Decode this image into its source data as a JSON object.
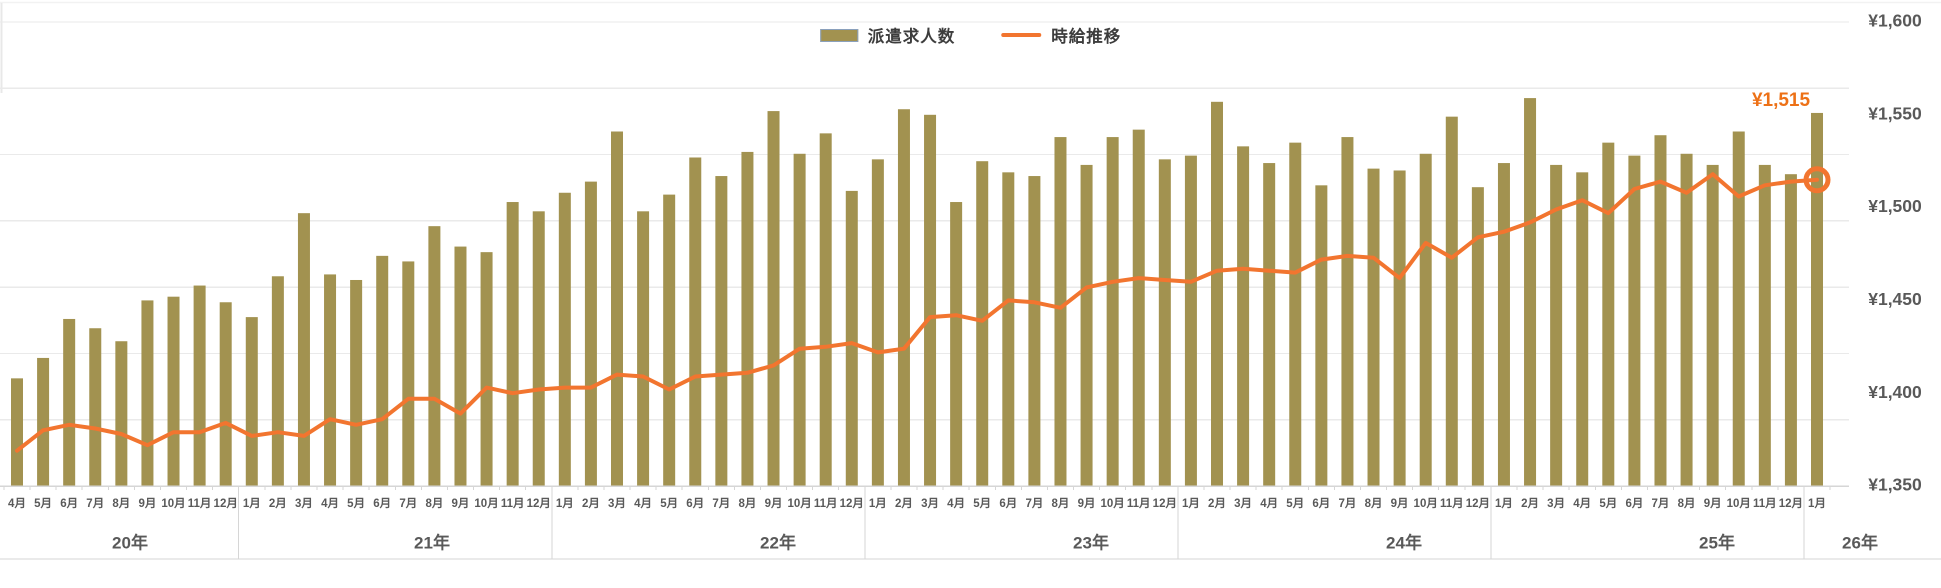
{
  "legend": {
    "bar_label": "派遣求人数",
    "line_label": "時給推移"
  },
  "annotation": {
    "last_value_label": "¥1,515"
  },
  "y_axis": {
    "labels": [
      "¥1,600",
      "¥1,550",
      "¥1,500",
      "¥1,450",
      "¥1,400",
      "¥1,350"
    ],
    "values": [
      1600,
      1550,
      1500,
      1450,
      1400,
      1350
    ]
  },
  "x_axis": {
    "years": [
      {
        "label": "20年",
        "months": [
          "4月",
          "5月",
          "6月",
          "7月",
          "8月",
          "9月",
          "10月",
          "11月",
          "12月"
        ]
      },
      {
        "label": "21年",
        "months": [
          "1月",
          "2月",
          "3月",
          "4月",
          "5月",
          "6月",
          "7月",
          "8月",
          "9月",
          "10月",
          "11月",
          "12月"
        ]
      },
      {
        "label": "22年",
        "months": [
          "1月",
          "2月",
          "3月",
          "4月",
          "5月",
          "6月",
          "7月",
          "8月",
          "9月",
          "10月",
          "11月",
          "12月"
        ]
      },
      {
        "label": "23年",
        "months": [
          "1月",
          "2月",
          "3月",
          "4月",
          "5月",
          "6月",
          "7月",
          "8月",
          "9月",
          "10月",
          "11月",
          "12月"
        ]
      },
      {
        "label": "24年",
        "months": [
          "1月",
          "2月",
          "3月",
          "4月",
          "5月",
          "6月",
          "7月",
          "8月",
          "9月",
          "10月",
          "11月",
          "12月"
        ]
      },
      {
        "label": "25年",
        "months": [
          "1月",
          "2月",
          "3月",
          "4月",
          "5月",
          "6月",
          "7月",
          "8月",
          "9月",
          "10月",
          "11月",
          "12月"
        ]
      },
      {
        "label": "26年",
        "months": [
          "1月"
        ]
      }
    ]
  },
  "colors": {
    "bar": "#a29250",
    "line": "#f2752f",
    "annotation": "#ed7117",
    "axis_text": "#595959",
    "gridline": "#eaeaea",
    "separator": "#d6d6d6",
    "baseline": "#d6d6d6"
  },
  "chart_data": {
    "type": "bar+line combo",
    "title": "",
    "categories": [
      "20年4月",
      "20年5月",
      "20年6月",
      "20年7月",
      "20年8月",
      "20年9月",
      "20年10月",
      "20年11月",
      "20年12月",
      "21年1月",
      "21年2月",
      "21年3月",
      "21年4月",
      "21年5月",
      "21年6月",
      "21年7月",
      "21年8月",
      "21年9月",
      "21年10月",
      "21年11月",
      "21年12月",
      "22年1月",
      "22年2月",
      "22年3月",
      "22年4月",
      "22年5月",
      "22年6月",
      "22年7月",
      "22年8月",
      "22年9月",
      "22年10月",
      "22年11月",
      "22年12月",
      "23年1月",
      "23年2月",
      "23年3月",
      "23年4月",
      "23年5月",
      "23年6月",
      "23年7月",
      "23年8月",
      "23年9月",
      "23年10月",
      "23年11月",
      "23年12月",
      "24年1月",
      "24年2月",
      "24年3月",
      "24年4月",
      "24年5月",
      "24年6月",
      "24年7月",
      "24年8月",
      "24年9月",
      "24年10月",
      "24年11月",
      "24年12月",
      "25年1月",
      "25年2月",
      "25年3月",
      "25年4月",
      "25年5月",
      "25年6月",
      "25年7月",
      "25年8月",
      "25年9月",
      "25年10月",
      "25年11月",
      "25年12月",
      "26年1月"
    ],
    "series": [
      {
        "name": "派遣求人数",
        "type": "bar",
        "axis": "hidden-left (job-count axis not labeled in image); values below are the bar-top positions expressed on the visible right ¥ axis",
        "values": [
          1408,
          1419,
          1440,
          1435,
          1428,
          1450,
          1452,
          1458,
          1449,
          1441,
          1463,
          1497,
          1464,
          1461,
          1474,
          1471,
          1490,
          1479,
          1476,
          1503,
          1498,
          1508,
          1514,
          1541,
          1498,
          1507,
          1527,
          1517,
          1530,
          1552,
          1529,
          1540,
          1509,
          1526,
          1553,
          1550,
          1503,
          1525,
          1519,
          1517,
          1538,
          1523,
          1538,
          1542,
          1526,
          1528,
          1557,
          1533,
          1524,
          1535,
          1512,
          1538,
          1521,
          1520,
          1529,
          1549,
          1511,
          1524,
          1559,
          1523,
          1519,
          1535,
          1528,
          1539,
          1529,
          1523,
          1541,
          1523,
          1518,
          1551
        ]
      },
      {
        "name": "時給推移",
        "type": "line",
        "axis": "right",
        "unit": "JPY",
        "values": [
          1369,
          1380,
          1383,
          1381,
          1378,
          1372,
          1379,
          1379,
          1384,
          1377,
          1379,
          1377,
          1386,
          1383,
          1386,
          1397,
          1397,
          1389,
          1403,
          1400,
          1402,
          1403,
          1403,
          1410,
          1409,
          1402,
          1409,
          1410,
          1411,
          1415,
          1424,
          1425,
          1427,
          1422,
          1424,
          1441,
          1442,
          1439,
          1450,
          1449,
          1446,
          1457,
          1460,
          1462,
          1461,
          1460,
          1466,
          1467,
          1466,
          1465,
          1472,
          1474,
          1473,
          1462,
          1481,
          1473,
          1484,
          1487,
          1492,
          1499,
          1504,
          1497,
          1510,
          1514,
          1508,
          1518,
          1506,
          1512,
          1514,
          1515
        ]
      }
    ],
    "y_right_axis": {
      "min": 1350,
      "max": 1600,
      "step": 50,
      "format": "¥#,##0"
    },
    "gridlines": {
      "horizontal_count": 8,
      "visible": true
    },
    "legend_position": "top-center",
    "annotation": {
      "text": "¥1,515",
      "series": "時給推移",
      "category": "26年1月",
      "marker": "orange ring on last point"
    }
  }
}
